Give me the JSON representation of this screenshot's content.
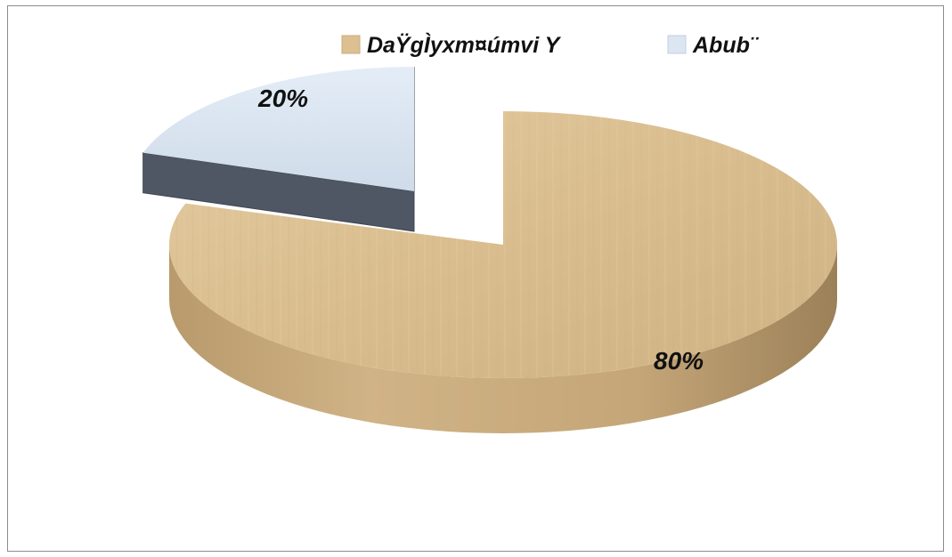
{
  "chart_data": {
    "type": "pie",
    "title": "",
    "categories": [
      "DaŸgÌyxm¤úmvi Y",
      "Abub¨"
    ],
    "values": [
      80,
      20
    ],
    "data_labels": [
      "80%",
      "20%"
    ],
    "exploded": true,
    "three_d": true,
    "legend_position": "top",
    "colors": {
      "slice_1_top": "#dcc092",
      "slice_1_side": "#b39568",
      "slice_2_top": "#dbe6f2",
      "slice_2_side": "#4e5763"
    }
  }
}
